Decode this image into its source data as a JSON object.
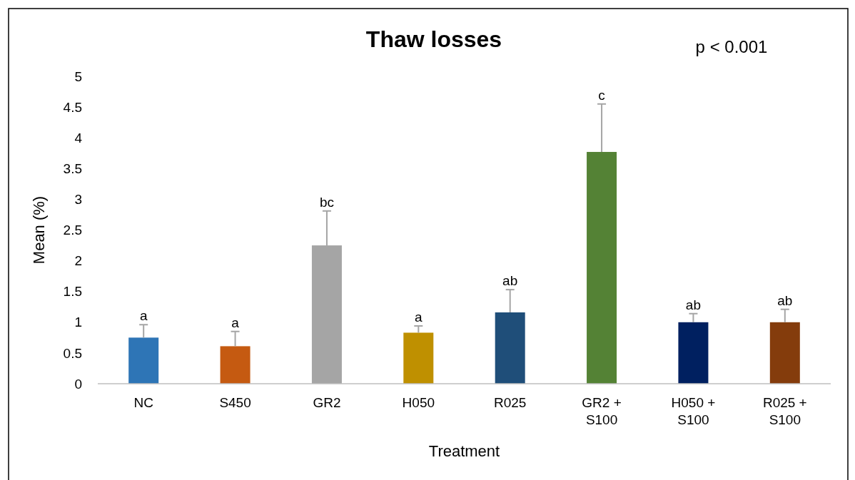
{
  "chart_data": {
    "type": "bar",
    "title": "Thaw losses",
    "xlabel": "Treatment",
    "ylabel": "Mean (%)",
    "categories": [
      "NC",
      "S450",
      "GR2",
      "H050",
      "R025",
      "GR2 + S100",
      "H050 + S100",
      "R025 + S100"
    ],
    "values": [
      0.75,
      0.61,
      2.25,
      0.83,
      1.16,
      3.77,
      1.0,
      1.0
    ],
    "colors": [
      "#2e75b6",
      "#c55a11",
      "#a5a5a5",
      "#bf9000",
      "#1f4e79",
      "#548235",
      "#002060",
      "#843c0c"
    ],
    "errors": [
      [
        0.75,
        0.96
      ],
      [
        0.61,
        0.85
      ],
      [
        2.25,
        2.81
      ],
      [
        0.83,
        0.94
      ],
      [
        1.16,
        1.53
      ],
      [
        3.77,
        4.55
      ],
      [
        1.0,
        1.14
      ],
      [
        1.0,
        1.21
      ]
    ],
    "ylim": [
      0,
      5
    ],
    "yticks": [
      0,
      0.5,
      1,
      1.5,
      2,
      2.5,
      3,
      3.5,
      4,
      4.5,
      5
    ],
    "grid": false,
    "annotations": [
      "p < 0.001",
      {
        "text": "a",
        "x": "NC",
        "y": 0.96
      },
      {
        "text": "a",
        "x": "S450",
        "y": 0.85
      },
      {
        "text": "bc",
        "x": "GR2",
        "y": 2.81
      },
      {
        "text": "a",
        "x": "H050",
        "y": 0.94
      },
      {
        "text": "ab",
        "x": "R025",
        "y": 1.53
      },
      {
        "text": "c",
        "x": "GR2 + S100",
        "y": 4.55
      },
      {
        "text": "ab",
        "x": "H050 + S100",
        "y": 1.14
      },
      {
        "text": "ab",
        "x": "R025 + S100",
        "y": 1.21
      }
    ]
  }
}
